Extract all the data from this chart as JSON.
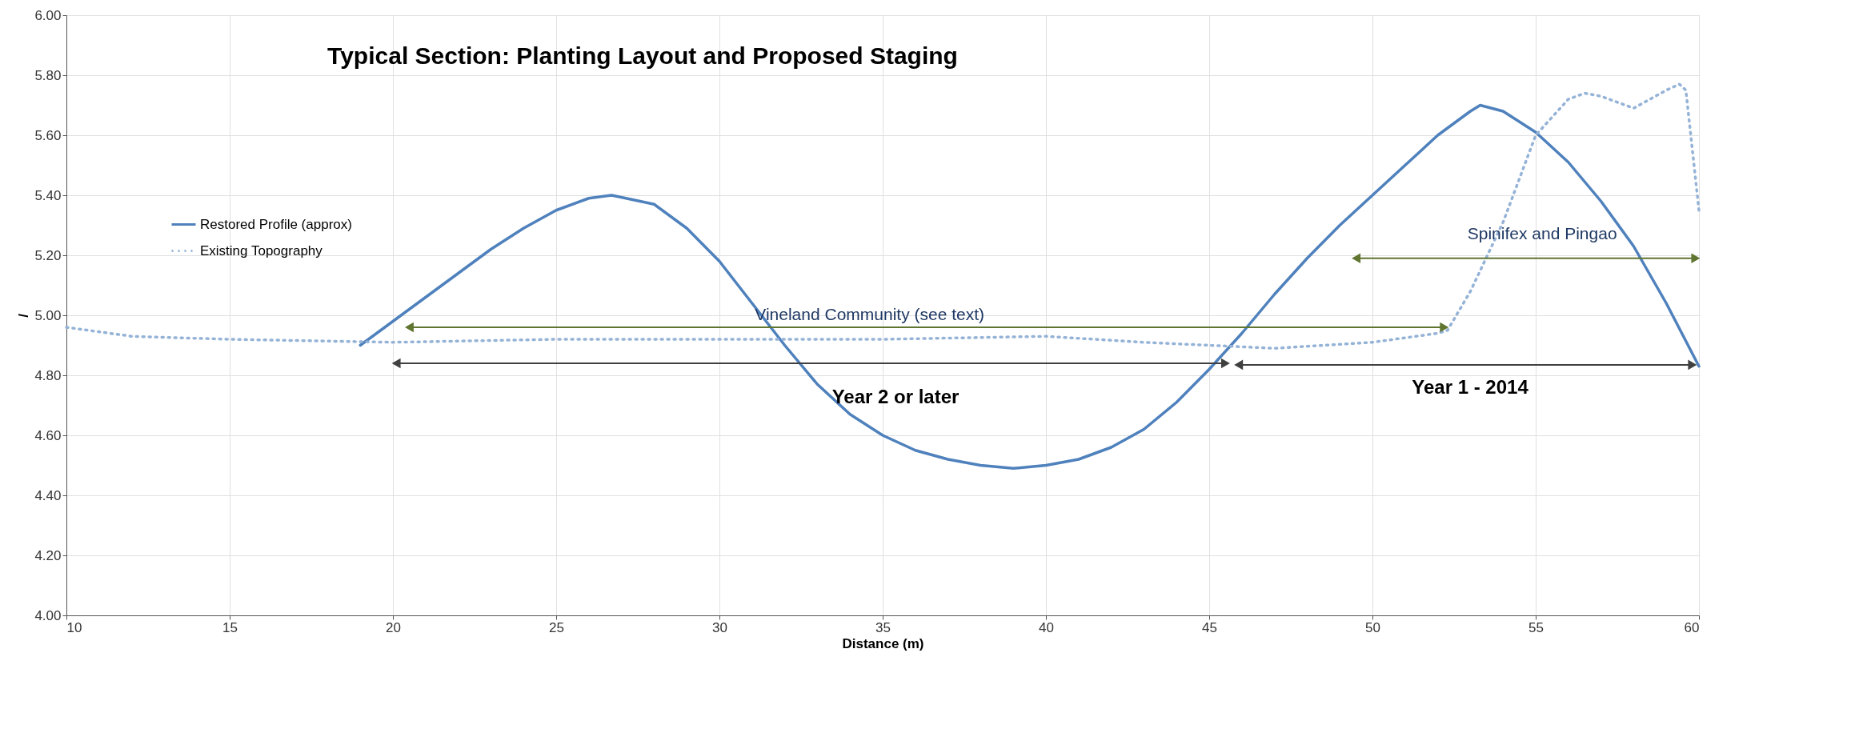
{
  "chart_data": {
    "type": "line",
    "title": "Typical Section: Planting Layout and Proposed Staging",
    "xlabel": "Distance (m)",
    "ylabel": "/",
    "xlim": [
      10,
      60
    ],
    "xticks": [
      10,
      15,
      20,
      25,
      30,
      35,
      40,
      45,
      50,
      55,
      60
    ],
    "ylim": [
      4.0,
      6.0
    ],
    "yticks": [
      {
        "value": 4.0,
        "label": "4.00"
      },
      {
        "value": 4.2,
        "label": "4.20"
      },
      {
        "value": 4.4,
        "label": "4.40"
      },
      {
        "value": 4.6,
        "label": "4.60"
      },
      {
        "value": 4.8,
        "label": "4.80"
      },
      {
        "value": 5.0,
        "label": "5.00"
      },
      {
        "value": 5.2,
        "label": "5.20"
      },
      {
        "value": 5.4,
        "label": "5.40"
      },
      {
        "value": 5.6,
        "label": "5.60"
      },
      {
        "value": 5.8,
        "label": "5.80"
      },
      {
        "value": 6.0,
        "label": "6.00"
      }
    ],
    "grid": true,
    "legend": "left",
    "marker": "none",
    "series": [
      {
        "name": "Restored Profile (approx)",
        "color": "#4f81bd",
        "line_style": "solid",
        "x": [
          19,
          20,
          21,
          22,
          23,
          24,
          25,
          26,
          26.7,
          28,
          29,
          30,
          31,
          32,
          33,
          34,
          35,
          36,
          37,
          38,
          39,
          40,
          41,
          42,
          43,
          44,
          45,
          46,
          47,
          48,
          49,
          50,
          51,
          52,
          53,
          53.3,
          54,
          55,
          56,
          57,
          58,
          59,
          60
        ],
        "values": [
          4.9,
          4.98,
          5.06,
          5.14,
          5.22,
          5.29,
          5.35,
          5.39,
          5.4,
          5.37,
          5.29,
          5.18,
          5.04,
          4.9,
          4.77,
          4.67,
          4.6,
          4.55,
          4.52,
          4.5,
          4.49,
          4.5,
          4.52,
          4.56,
          4.62,
          4.71,
          4.82,
          4.94,
          5.07,
          5.19,
          5.3,
          5.4,
          5.5,
          5.6,
          5.68,
          5.7,
          5.68,
          5.61,
          5.51,
          5.38,
          5.23,
          5.04,
          4.83
        ]
      },
      {
        "name": "Existing Topography",
        "color": "#95b3d7",
        "line_style": "dotted",
        "x": [
          10,
          12,
          15,
          20,
          25,
          30,
          35,
          40,
          43,
          45,
          47,
          50,
          52,
          52.3,
          53,
          54,
          55,
          56,
          56.5,
          57,
          58,
          59,
          59.4,
          59.6,
          60
        ],
        "values": [
          4.96,
          4.93,
          4.92,
          4.91,
          4.92,
          4.92,
          4.92,
          4.93,
          4.91,
          4.9,
          4.89,
          4.91,
          4.94,
          4.95,
          5.08,
          5.31,
          5.6,
          5.72,
          5.74,
          5.73,
          5.69,
          5.75,
          5.77,
          5.75,
          5.35
        ]
      },
      {
        "color": "#5f7530",
        "line_style": "solid",
        "marker": "triangle",
        "x": [
          20.5,
          52.2
        ],
        "values": [
          4.96,
          4.96
        ]
      },
      {
        "color": "#5f7530",
        "line_style": "solid",
        "marker": "triangle",
        "x": [
          49.5,
          59.9
        ],
        "values": [
          5.19,
          5.19
        ]
      },
      {
        "color": "#404040",
        "line_style": "solid",
        "marker": "triangle",
        "x": [
          20.1,
          45.5
        ],
        "values": [
          4.84,
          4.84
        ]
      },
      {
        "color": "#404040",
        "line_style": "solid",
        "marker": "triangle",
        "x": [
          45.9,
          59.8
        ],
        "values": [
          4.835,
          4.835
        ]
      }
    ],
    "annotations": [
      {
        "text": "Vineland Community (see text)",
        "x": 34.6,
        "y": 5.0
      },
      {
        "text": "Spinifex and Pingao",
        "x": 55.2,
        "y": 5.27
      },
      "Year  2 or later",
      "Year 1 - 2014"
    ]
  }
}
